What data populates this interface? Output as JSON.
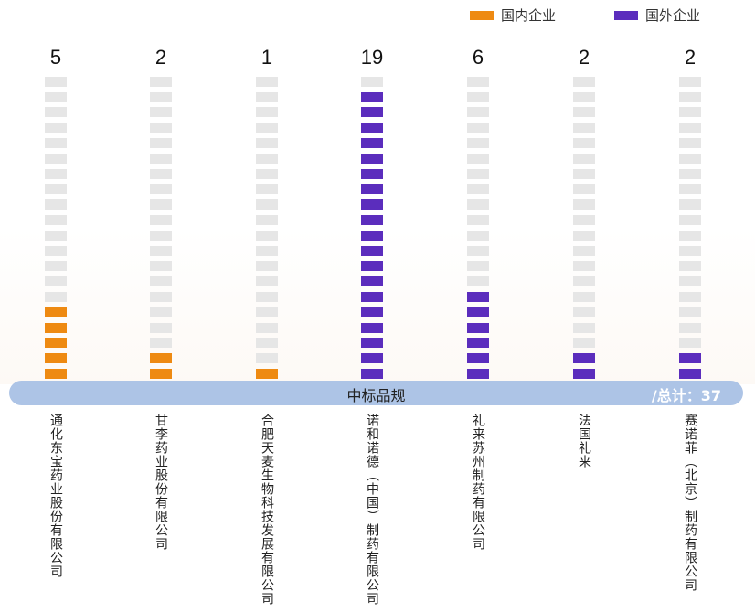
{
  "chart_data": {
    "type": "bar",
    "style": "stacked-block-pictogram",
    "slots_per_column": 20,
    "categories": [
      "通化东宝药业股份有限公司",
      "甘李药业股份有限公司",
      "合肥天麦生物科技发展有限公司",
      "诺和诺德（中国）制药有限公司",
      "礼来苏州制药有限公司",
      "法国礼来",
      "赛诺菲（北京）制药有限公司"
    ],
    "values": [
      5,
      2,
      1,
      19,
      6,
      2,
      2
    ],
    "groups": [
      "domestic",
      "domestic",
      "domestic",
      "foreign",
      "foreign",
      "foreign",
      "foreign"
    ],
    "legend": [
      {
        "key": "domestic",
        "label": "国内企业",
        "color": "#ee8a12"
      },
      {
        "key": "foreign",
        "label": "国外企业",
        "color": "#5b2dbd"
      }
    ],
    "legend_position": "top-right",
    "xlabel": "中标品规",
    "total_label": "/总计：37",
    "empty_color": "#e6e6e6"
  }
}
